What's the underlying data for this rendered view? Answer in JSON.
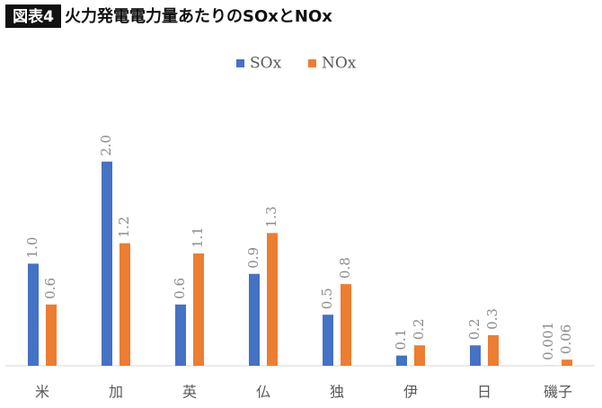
{
  "chart_data": {
    "type": "bar",
    "title_tag": "図表4",
    "title": "火力発電電力量あたりのSOxとNOx",
    "categories": [
      "米",
      "加",
      "英",
      "仏",
      "独",
      "伊",
      "日",
      "磯子"
    ],
    "series": [
      {
        "name": "SOx",
        "color": "#4472c4",
        "values": [
          1.0,
          2.0,
          0.6,
          0.9,
          0.5,
          0.1,
          0.2,
          0.001
        ],
        "value_labels": [
          "1.0",
          "2.0",
          "0.6",
          "0.9",
          "0.5",
          "0.1",
          "0.2",
          "0.001"
        ]
      },
      {
        "name": "NOx",
        "color": "#ed7d31",
        "values": [
          0.6,
          1.2,
          1.1,
          1.3,
          0.8,
          0.2,
          0.3,
          0.06
        ],
        "value_labels": [
          "0.6",
          "1.2",
          "1.1",
          "1.3",
          "0.8",
          "0.2",
          "0.3",
          "0.06"
        ]
      }
    ],
    "ylim": [
      0,
      2.5
    ],
    "legend": "top"
  }
}
